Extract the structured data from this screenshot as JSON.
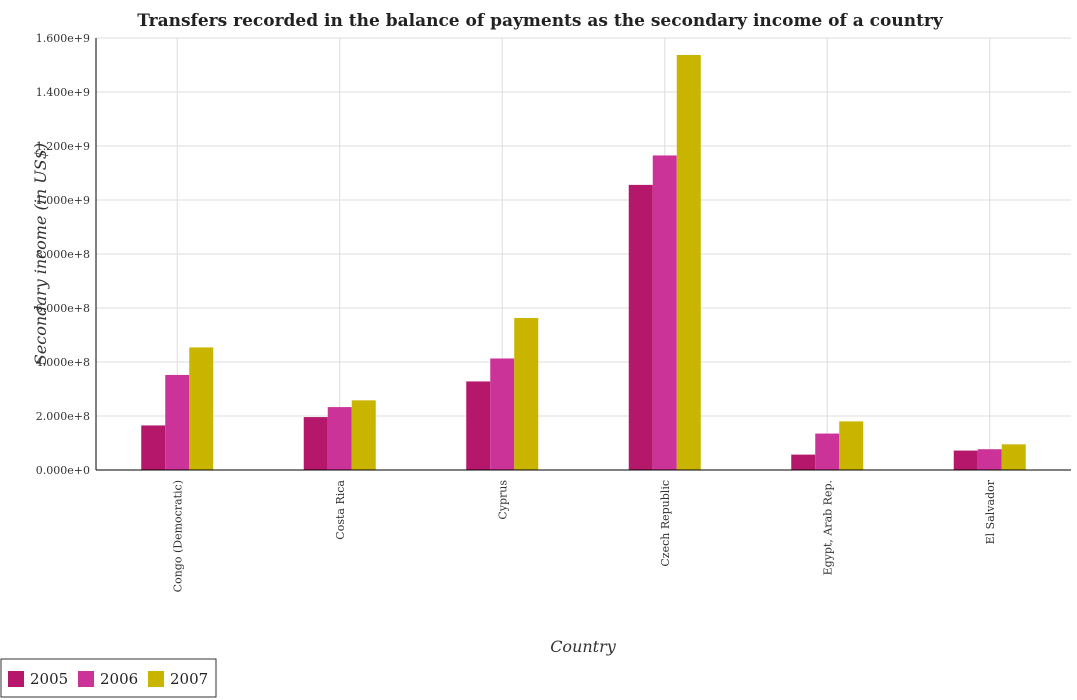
{
  "chart_data": {
    "type": "bar",
    "title": "Transfers recorded in the balance of payments as the secondary income of a country",
    "xlabel": "Country",
    "ylabel": "Secondary income (in US$)",
    "ylim": [
      0,
      1600000000
    ],
    "yticks": [
      0,
      200000000,
      400000000,
      600000000,
      800000000,
      1000000000,
      1200000000,
      1400000000,
      1600000000
    ],
    "ytick_labels": [
      "0.000e+0",
      "2.000e+8",
      "4.000e+8",
      "6.000e+8",
      "8.000e+8",
      "1.000e+9",
      "1.200e+9",
      "1.400e+9",
      "1.600e+9"
    ],
    "categories": [
      "Congo (Democratic)",
      "Costa Rica",
      "Cyprus",
      "Czech Republic",
      "Egypt, Arab Rep.",
      "El Salvador"
    ],
    "series": [
      {
        "name": "2005",
        "color": "#b5176b",
        "values": [
          165000000,
          196000000,
          328000000,
          1056000000,
          57000000,
          72000000
        ]
      },
      {
        "name": "2006",
        "color": "#cc3399",
        "values": [
          352000000,
          233000000,
          413000000,
          1165000000,
          135000000,
          77000000
        ]
      },
      {
        "name": "2007",
        "color": "#c9b400",
        "values": [
          454000000,
          258000000,
          563000000,
          1537000000,
          180000000,
          95000000
        ]
      }
    ],
    "grid": true,
    "legend_position": "bottom-left"
  }
}
